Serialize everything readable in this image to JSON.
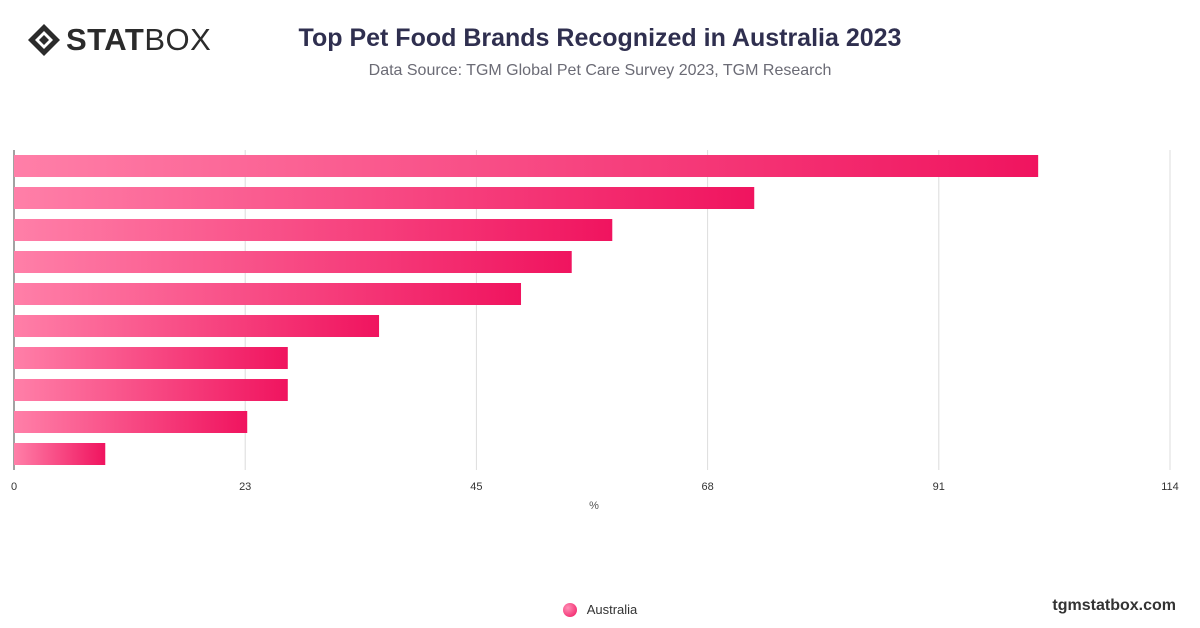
{
  "header": {
    "logo_bold": "STAT",
    "logo_thin": "BOX",
    "title": "Top Pet Food Brands Recognized in Australia 2023",
    "subtitle": "Data Source: TGM Global Pet Care Survey 2023, TGM Research"
  },
  "footer": {
    "site": "tgmstatbox.com"
  },
  "colors": {
    "bar_start": "#ff7fa8",
    "bar_end": "#f0145f",
    "grid": "#dcdcdc",
    "axis_text": "#333333"
  },
  "chart_data": {
    "type": "bar",
    "orientation": "horizontal",
    "categories": [
      "",
      "",
      "",
      "",
      "",
      "",
      "",
      "",
      "",
      ""
    ],
    "series": [
      {
        "name": "Australia",
        "values": [
          101,
          73,
          59,
          55,
          50,
          36,
          27,
          27,
          23,
          9
        ]
      }
    ],
    "xlabel": "%",
    "xlim": [
      0,
      114
    ],
    "xticks": [
      "0",
      "23",
      "45",
      "68",
      "91",
      "114"
    ],
    "xtick_values": [
      0,
      22.8,
      45.6,
      68.4,
      91.2,
      114
    ],
    "grid": true,
    "legend_position": "bottom"
  }
}
